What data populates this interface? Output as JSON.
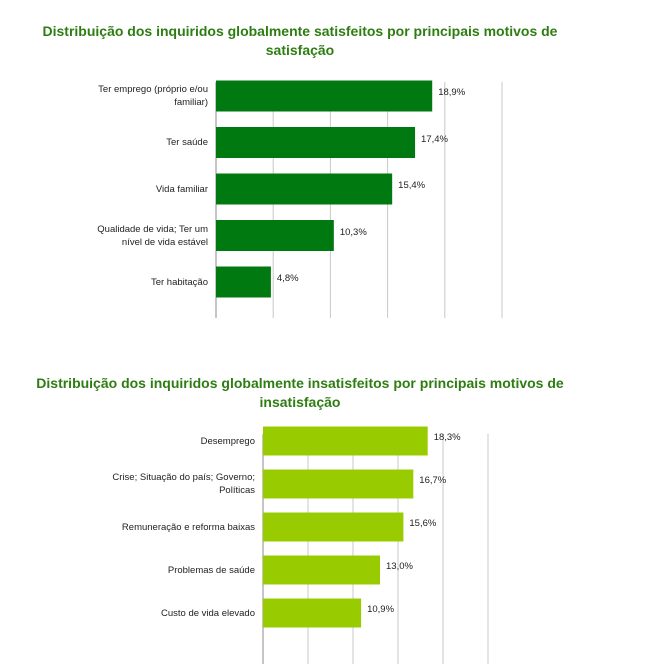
{
  "chart_data": [
    {
      "type": "bar",
      "orientation": "horizontal",
      "title": "Distribuição dos inquiridos globalmente satisfeitos por principais motivos de satisfação",
      "categories": [
        "Ter emprego (próprio e/ou familiar)",
        "Ter saúde",
        "Vida familiar",
        "Qualidade de vida; Ter um nível de vida estável",
        "Ter habitação"
      ],
      "values": [
        18.9,
        17.4,
        15.4,
        10.3,
        4.8
      ],
      "value_labels": [
        "18,9%",
        "17,4%",
        "15,4%",
        "10,3%",
        "4,8%"
      ],
      "xlim": [
        0,
        25
      ],
      "grid": true,
      "color": "#007a10"
    },
    {
      "type": "bar",
      "orientation": "horizontal",
      "title": "Distribuição dos inquiridos globalmente insatisfeitos por principais motivos de insatisfação",
      "categories": [
        "Desemprego",
        "Crise; Situação do país; Governo; Políticas",
        "Remuneração e reforma baixas",
        "Problemas de saúde",
        "Custo de vida elevado"
      ],
      "values": [
        18.3,
        16.7,
        15.6,
        13.0,
        10.9
      ],
      "value_labels": [
        "18,3%",
        "16,7%",
        "15,6%",
        "13,0%",
        "10,9%"
      ],
      "xlim": [
        0,
        25
      ],
      "grid": true,
      "color": "#99cc00"
    }
  ]
}
